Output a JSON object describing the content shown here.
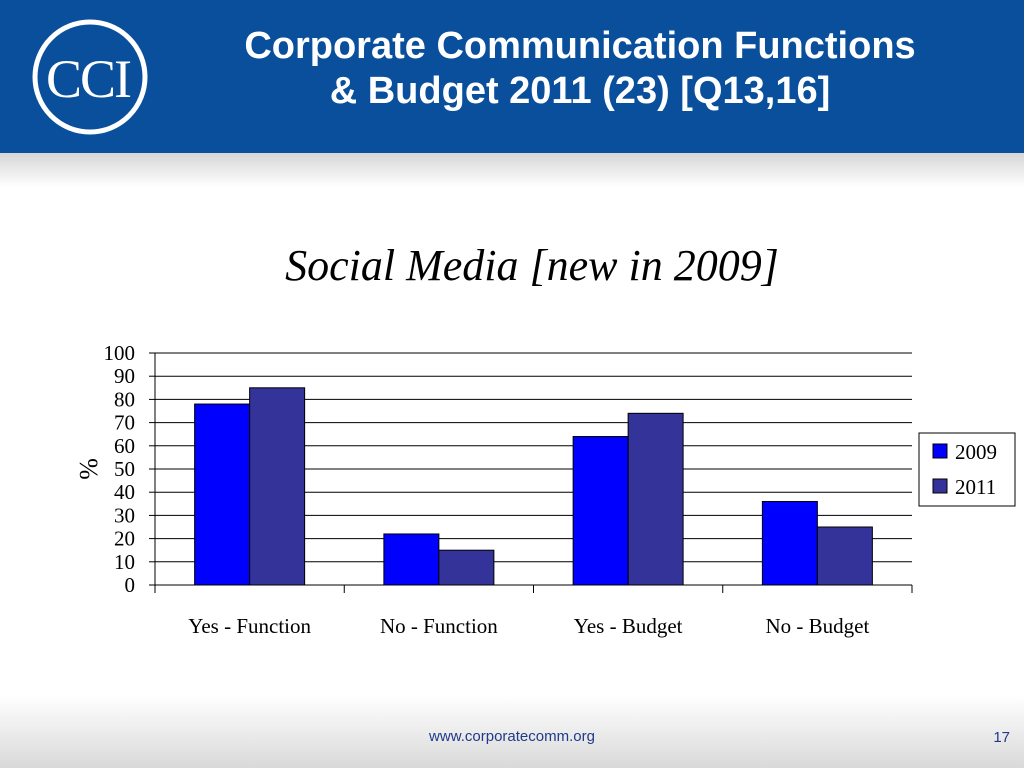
{
  "header": {
    "logo_text": "CCI",
    "title_line1": "Corporate Communication Functions",
    "title_line2": "& Budget 2011 (23) [Q13,16]"
  },
  "footer": {
    "url": "www.corporatecomm.org",
    "page_number": "17"
  },
  "colors": {
    "header_bg": "#0a4f9c",
    "series_2009": "#0000ff",
    "series_2011": "#333399"
  },
  "chart_data": {
    "type": "bar",
    "title": "Social Media [new in 2009]",
    "ylabel": "%",
    "xlabel": "",
    "categories": [
      "Yes - Function",
      "No - Function",
      "Yes - Budget",
      "No - Budget"
    ],
    "series": [
      {
        "name": "2009",
        "values": [
          78,
          22,
          64,
          36
        ],
        "color": "#0000ff"
      },
      {
        "name": "2011",
        "values": [
          85,
          15,
          74,
          25
        ],
        "color": "#333399"
      }
    ],
    "ylim": [
      0,
      100
    ],
    "yticks": [
      "0",
      "10",
      "20",
      "30",
      "40",
      "50",
      "60",
      "70",
      "80",
      "90",
      "100"
    ],
    "grid": true,
    "legend": "right"
  }
}
